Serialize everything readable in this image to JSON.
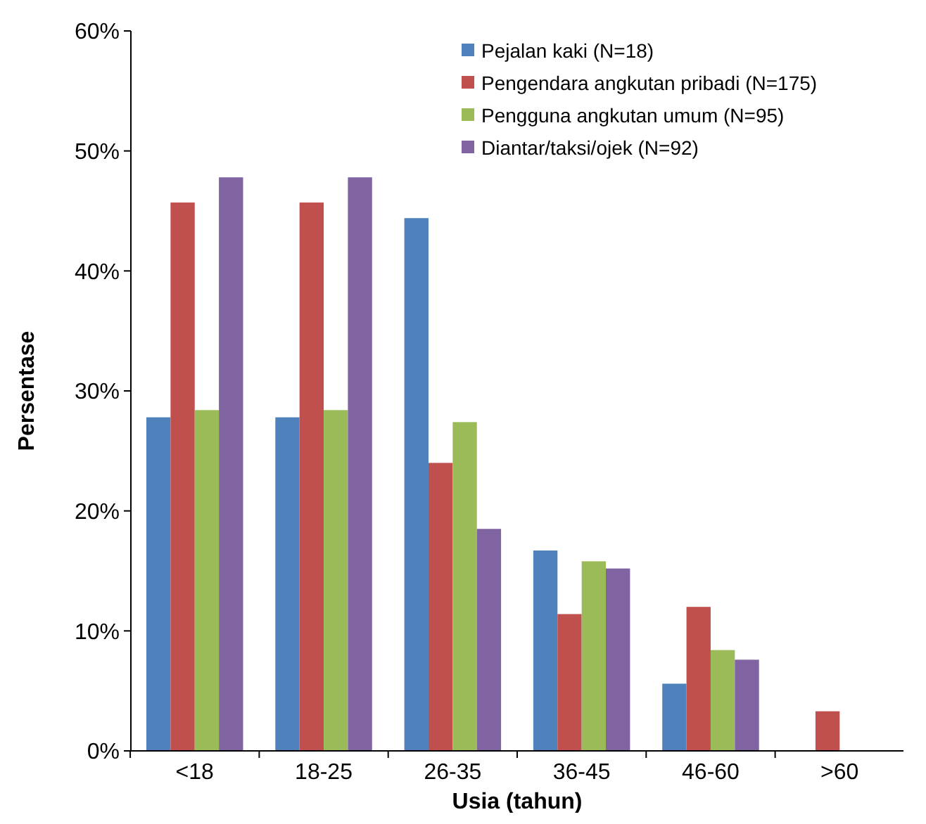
{
  "chart_data": {
    "type": "bar",
    "xlabel": "Usia (tahun)",
    "ylabel": "Persentase",
    "categories": [
      "<18",
      "18-25",
      "26-35",
      "36-45",
      "46-60",
      ">60"
    ],
    "series": [
      {
        "name": "Pejalan kaki (N=18)",
        "color": "#4f81bd",
        "values": [
          27.8,
          27.8,
          44.4,
          16.7,
          5.6,
          0
        ]
      },
      {
        "name": "Pengendara angkutan pribadi (N=175)",
        "color": "#c0504d",
        "values": [
          45.7,
          45.7,
          24.0,
          11.4,
          12.0,
          3.3
        ]
      },
      {
        "name": "Pengguna angkutan umum (N=95)",
        "color": "#9bbb59",
        "values": [
          28.4,
          28.4,
          27.4,
          15.8,
          8.4,
          0
        ]
      },
      {
        "name": "Diantar/taksi/ojek (N=92)",
        "color": "#8064a2",
        "values": [
          47.8,
          47.8,
          18.5,
          15.2,
          7.6,
          0
        ]
      }
    ],
    "ylim": [
      0,
      60
    ],
    "yticks": [
      {
        "value": 0,
        "label": "0%"
      },
      {
        "value": 10,
        "label": "10%"
      },
      {
        "value": 20,
        "label": "20%"
      },
      {
        "value": 30,
        "label": "30%"
      },
      {
        "value": 40,
        "label": "40%"
      },
      {
        "value": 50,
        "label": "50%"
      },
      {
        "value": 60,
        "label": "60%"
      }
    ],
    "grid": false,
    "legend": "top right"
  }
}
